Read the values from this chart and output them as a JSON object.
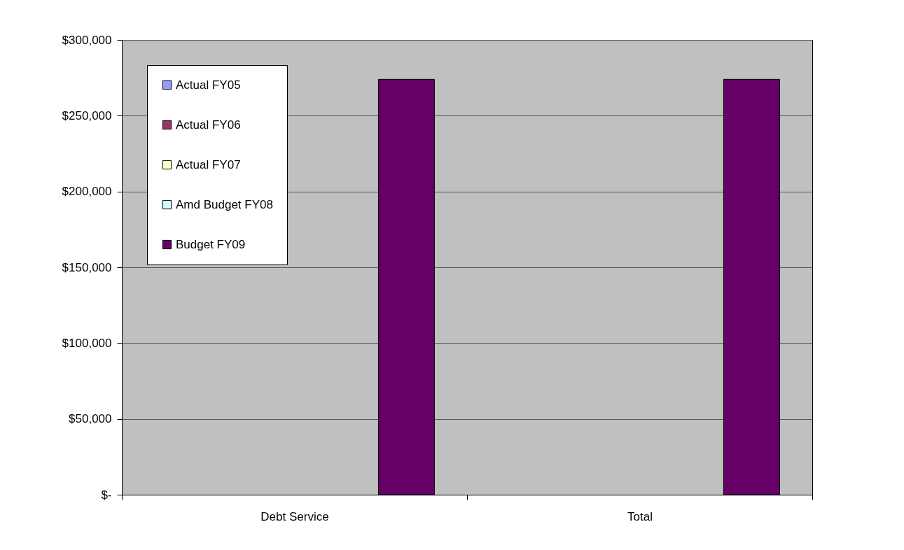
{
  "chart_data": {
    "type": "bar",
    "categories": [
      "Debt Service",
      "Total"
    ],
    "series": [
      {
        "name": "Actual FY05",
        "color": "#9999ff",
        "values": [
          null,
          null
        ]
      },
      {
        "name": "Actual FY06",
        "color": "#993366",
        "values": [
          null,
          null
        ]
      },
      {
        "name": "Actual FY07",
        "color": "#ffffcc",
        "values": [
          null,
          null
        ]
      },
      {
        "name": "Amd Budget FY08",
        "color": "#ccffff",
        "values": [
          null,
          null
        ]
      },
      {
        "name": "Budget FY09",
        "color": "#660066",
        "values": [
          274000,
          274000
        ]
      }
    ],
    "ylim": [
      0,
      300000
    ],
    "yticks": [
      {
        "value": 0,
        "label": "$-"
      },
      {
        "value": 50000,
        "label": "$50,000"
      },
      {
        "value": 100000,
        "label": "$100,000"
      },
      {
        "value": 150000,
        "label": "$150,000"
      },
      {
        "value": 200000,
        "label": "$200,000"
      },
      {
        "value": 250000,
        "label": "$250,000"
      },
      {
        "value": 300000,
        "label": "$300,000"
      }
    ],
    "grid": "y",
    "legend": "top left"
  }
}
